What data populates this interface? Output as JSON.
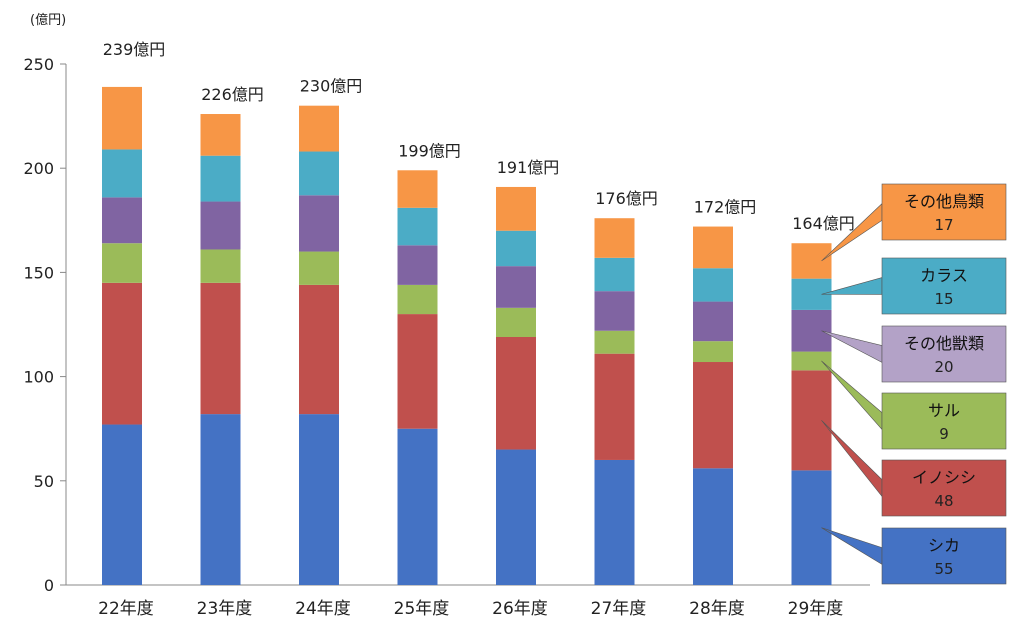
{
  "chart_data": {
    "type": "bar",
    "stacked": true,
    "unit_label": "(億円)",
    "ylim": [
      0,
      250
    ],
    "yticks": [
      0,
      50,
      100,
      150,
      200,
      250
    ],
    "categories": [
      "22年度",
      "23年度",
      "24年度",
      "25年度",
      "26年度",
      "27年度",
      "28年度",
      "29年度"
    ],
    "totals_labels": [
      "239億円",
      "226億円",
      "230億円",
      "199億円",
      "191億円",
      "176億円",
      "172億円",
      "164億円"
    ],
    "series": [
      {
        "name": "シカ",
        "color": "#4472C4",
        "values": [
          77,
          82,
          82,
          75,
          65,
          60,
          56,
          55
        ]
      },
      {
        "name": "イノシシ",
        "color": "#C0504D",
        "values": [
          68,
          63,
          62,
          55,
          54,
          51,
          51,
          48
        ]
      },
      {
        "name": "サル",
        "color": "#9BBB59",
        "values": [
          19,
          16,
          16,
          14,
          14,
          11,
          10,
          9
        ]
      },
      {
        "name": "その他獣類",
        "color": "#8064A2",
        "values": [
          22,
          23,
          27,
          19,
          20,
          19,
          19,
          20
        ]
      },
      {
        "name": "カラス",
        "color": "#4BACC6",
        "values": [
          23,
          22,
          21,
          18,
          17,
          16,
          16,
          15
        ]
      },
      {
        "name": "その他鳥類",
        "color": "#F79646",
        "values": [
          30,
          20,
          22,
          18,
          21,
          19,
          20,
          17
        ]
      }
    ],
    "callouts": [
      {
        "name": "その他鳥類",
        "value": "17",
        "color": "#F79646"
      },
      {
        "name": "カラス",
        "value": "15",
        "color": "#4BACC6"
      },
      {
        "name": "その他獣類",
        "value": "20",
        "color": "#B3A2C7"
      },
      {
        "name": "サル",
        "value": "9",
        "color": "#9BBB59"
      },
      {
        "name": "イノシシ",
        "value": "48",
        "color": "#C0504D"
      },
      {
        "name": "シカ",
        "value": "55",
        "color": "#4472C4"
      }
    ]
  }
}
